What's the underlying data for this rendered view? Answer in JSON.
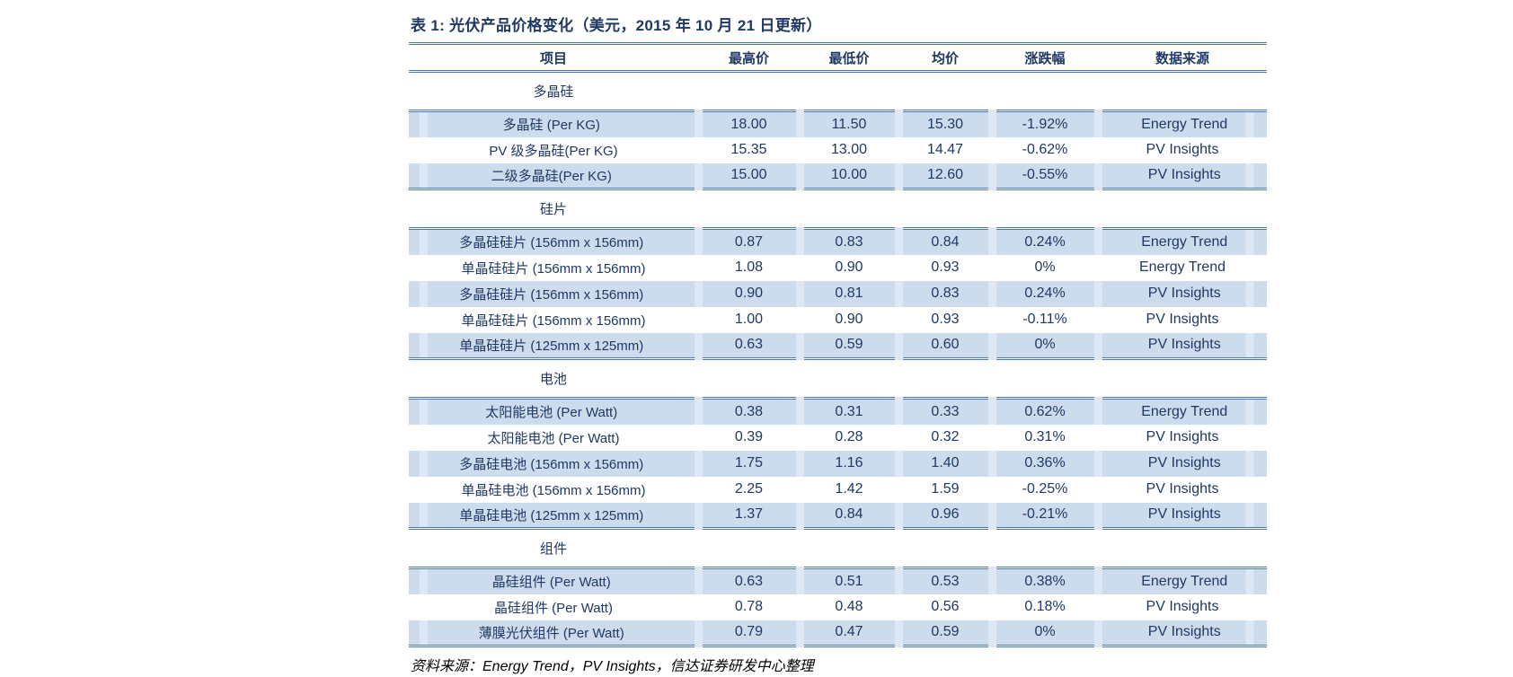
{
  "table": {
    "title": "表 1:  光伏产品价格变化（美元，2015 年 10 月 21 日更新）",
    "columns": [
      "项目",
      "最高价",
      "最低价",
      "均价",
      "涨跌幅",
      "数据来源"
    ],
    "sections": [
      {
        "name": "多晶硅",
        "rows": [
          {
            "item": "多晶硅 (Per KG)",
            "high": "18.00",
            "low": "11.50",
            "avg": "15.30",
            "chg": "-1.92%",
            "source": "Energy Trend"
          },
          {
            "item": "PV 级多晶硅(Per KG)",
            "high": "15.35",
            "low": "13.00",
            "avg": "14.47",
            "chg": "-0.62%",
            "source": "PV Insights"
          },
          {
            "item": "二级多晶硅(Per KG)",
            "high": "15.00",
            "low": "10.00",
            "avg": "12.60",
            "chg": "-0.55%",
            "source": "PV Insights"
          }
        ]
      },
      {
        "name": "硅片",
        "rows": [
          {
            "item": "多晶硅硅片 (156mm x 156mm)",
            "high": "0.87",
            "low": "0.83",
            "avg": "0.84",
            "chg": "0.24%",
            "source": "Energy Trend"
          },
          {
            "item": "单晶硅硅片 (156mm x 156mm)",
            "high": "1.08",
            "low": "0.90",
            "avg": "0.93",
            "chg": "0%",
            "source": "Energy Trend"
          },
          {
            "item": "多晶硅硅片 (156mm x 156mm)",
            "high": "0.90",
            "low": "0.81",
            "avg": "0.83",
            "chg": "0.24%",
            "source": "PV Insights"
          },
          {
            "item": "单晶硅硅片 (156mm x 156mm)",
            "high": "1.00",
            "low": "0.90",
            "avg": "0.93",
            "chg": "-0.11%",
            "source": "PV Insights"
          },
          {
            "item": "单晶硅硅片 (125mm x 125mm)",
            "high": "0.63",
            "low": "0.59",
            "avg": "0.60",
            "chg": "0%",
            "source": "PV Insights"
          }
        ]
      },
      {
        "name": "电池",
        "rows": [
          {
            "item": "太阳能电池 (Per Watt)",
            "high": "0.38",
            "low": "0.31",
            "avg": "0.33",
            "chg": "0.62%",
            "source": "Energy Trend"
          },
          {
            "item": "太阳能电池 (Per Watt)",
            "high": "0.39",
            "low": "0.28",
            "avg": "0.32",
            "chg": "0.31%",
            "source": "PV Insights"
          },
          {
            "item": "多晶硅电池 (156mm x 156mm)",
            "high": "1.75",
            "low": "1.16",
            "avg": "1.40",
            "chg": "0.36%",
            "source": "PV Insights"
          },
          {
            "item": "单晶硅电池 (156mm x 156mm)",
            "high": "2.25",
            "low": "1.42",
            "avg": "1.59",
            "chg": "-0.25%",
            "source": "PV Insights"
          },
          {
            "item": "单晶硅电池 (125mm x 125mm)",
            "high": "1.37",
            "low": "0.84",
            "avg": "0.96",
            "chg": "-0.21%",
            "source": "PV Insights"
          }
        ]
      },
      {
        "name": "组件",
        "rows": [
          {
            "item": "晶硅组件 (Per Watt)",
            "high": "0.63",
            "low": "0.51",
            "avg": "0.53",
            "chg": "0.38%",
            "source": "Energy Trend"
          },
          {
            "item": "晶硅组件 (Per Watt)",
            "high": "0.78",
            "low": "0.48",
            "avg": "0.56",
            "chg": "0.18%",
            "source": "PV Insights"
          },
          {
            "item": "薄膜光伏组件 (Per Watt)",
            "high": "0.79",
            "low": "0.47",
            "avg": "0.59",
            "chg": "0%",
            "source": "PV Insights"
          }
        ]
      }
    ],
    "source_note": "资料来源：Energy Trend，PV Insights，信达证券研发中心整理"
  },
  "colors": {
    "text_navy": "#1F3864",
    "row_shade": "#CDDCEC",
    "row_divider": "#DEE8F4",
    "rule_blue": "#4A7AB5",
    "note_black": "#000000"
  }
}
